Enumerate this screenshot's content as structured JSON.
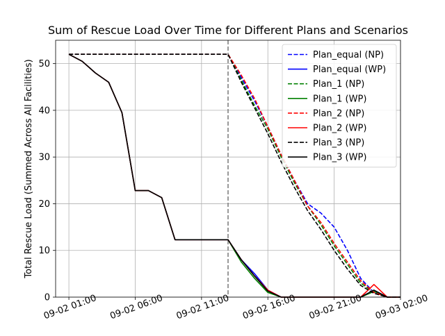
{
  "chart_data": {
    "type": "line",
    "title": "Sum of Rescue Load Over Time for Different Plans and Scenarios",
    "xlabel": "",
    "ylabel": "Total Rescue Load (Summed Across All Facilities)",
    "xlim": [
      "2024-09-02 00:00",
      "2024-09-03 02:00"
    ],
    "ylim": [
      0,
      55
    ],
    "x_ticks": [
      {
        "value": "2024-09-02 01:00",
        "label": "09-02 01:00"
      },
      {
        "value": "2024-09-02 06:00",
        "label": "09-02 06:00"
      },
      {
        "value": "2024-09-02 11:00",
        "label": "09-02 11:00"
      },
      {
        "value": "2024-09-02 16:00",
        "label": "09-02 16:00"
      },
      {
        "value": "2024-09-02 21:00",
        "label": "09-02 21:00"
      },
      {
        "value": "2024-09-03 02:00",
        "label": "09-03 02:00"
      }
    ],
    "y_ticks": [
      0,
      10,
      20,
      30,
      40,
      50
    ],
    "grid": true,
    "legend_position": "top-right",
    "vline": {
      "x": "2024-09-02 13:00",
      "color": "#808080",
      "style": "dashed"
    },
    "series": [
      {
        "name": "Plan_equal (NP)",
        "color": "#0000ff",
        "style": "dashed",
        "x": [
          "2024-09-02 01:00",
          "2024-09-02 13:00",
          "2024-09-02 14:00",
          "2024-09-02 15:00",
          "2024-09-02 16:00",
          "2024-09-02 17:00",
          "2024-09-02 18:00",
          "2024-09-02 19:00",
          "2024-09-02 20:00",
          "2024-09-02 21:00",
          "2024-09-02 22:00",
          "2024-09-02 23:00",
          "2024-09-03 00:00",
          "2024-09-03 01:00",
          "2024-09-03 02:00"
        ],
        "y": [
          52,
          52,
          47,
          42,
          36.5,
          30.5,
          25,
          20,
          18,
          15,
          10,
          4,
          1,
          0,
          0
        ]
      },
      {
        "name": "Plan_equal (WP)",
        "color": "#0000ff",
        "style": "solid",
        "x": [
          "2024-09-02 01:00",
          "2024-09-02 02:00",
          "2024-09-02 03:00",
          "2024-09-02 04:00",
          "2024-09-02 05:00",
          "2024-09-02 06:00",
          "2024-09-02 07:00",
          "2024-09-02 08:00",
          "2024-09-02 09:00",
          "2024-09-02 10:00",
          "2024-09-02 11:00",
          "2024-09-02 12:00",
          "2024-09-02 13:00",
          "2024-09-02 14:00",
          "2024-09-02 15:00",
          "2024-09-02 16:00",
          "2024-09-02 17:00",
          "2024-09-02 18:00",
          "2024-09-02 19:00",
          "2024-09-02 20:00",
          "2024-09-02 21:00",
          "2024-09-02 22:00",
          "2024-09-02 23:00",
          "2024-09-03 00:00",
          "2024-09-03 01:00",
          "2024-09-03 02:00"
        ],
        "y": [
          52,
          50.5,
          48,
          46,
          39.5,
          22.8,
          22.8,
          21.3,
          12.3,
          12.3,
          12.3,
          12.3,
          12.3,
          8,
          5,
          1.5,
          0,
          0,
          0,
          0,
          0,
          0,
          0,
          1.5,
          0,
          0
        ]
      },
      {
        "name": "Plan_1 (NP)",
        "color": "#008000",
        "style": "dashed",
        "x": [
          "2024-09-02 01:00",
          "2024-09-02 13:00",
          "2024-09-02 14:00",
          "2024-09-02 15:00",
          "2024-09-02 16:00",
          "2024-09-02 17:00",
          "2024-09-02 18:00",
          "2024-09-02 19:00",
          "2024-09-02 20:00",
          "2024-09-02 21:00",
          "2024-09-02 22:00",
          "2024-09-02 23:00",
          "2024-09-03 00:00",
          "2024-09-03 01:00",
          "2024-09-03 02:00"
        ],
        "y": [
          52,
          52,
          46.5,
          41,
          36,
          30,
          24.5,
          19.5,
          15.5,
          11,
          7,
          3,
          1,
          0,
          0
        ]
      },
      {
        "name": "Plan_1 (WP)",
        "color": "#008000",
        "style": "solid",
        "x": [
          "2024-09-02 01:00",
          "2024-09-02 02:00",
          "2024-09-02 03:00",
          "2024-09-02 04:00",
          "2024-09-02 05:00",
          "2024-09-02 06:00",
          "2024-09-02 07:00",
          "2024-09-02 08:00",
          "2024-09-02 09:00",
          "2024-09-02 10:00",
          "2024-09-02 11:00",
          "2024-09-02 12:00",
          "2024-09-02 13:00",
          "2024-09-02 14:00",
          "2024-09-02 15:00",
          "2024-09-02 16:00",
          "2024-09-02 17:00",
          "2024-09-02 18:00",
          "2024-09-02 19:00",
          "2024-09-02 20:00",
          "2024-09-02 21:00",
          "2024-09-02 22:00",
          "2024-09-02 23:00",
          "2024-09-03 00:00",
          "2024-09-03 01:00",
          "2024-09-03 02:00"
        ],
        "y": [
          52,
          50.5,
          48,
          46,
          39.5,
          22.8,
          22.8,
          21.3,
          12.3,
          12.3,
          12.3,
          12.3,
          12.3,
          7.5,
          4,
          1,
          0,
          0,
          0,
          0,
          0,
          0,
          0,
          1.2,
          0,
          0
        ]
      },
      {
        "name": "Plan_2 (NP)",
        "color": "#ff0000",
        "style": "dashed",
        "x": [
          "2024-09-02 01:00",
          "2024-09-02 13:00",
          "2024-09-02 14:00",
          "2024-09-02 15:00",
          "2024-09-02 16:00",
          "2024-09-02 17:00",
          "2024-09-02 18:00",
          "2024-09-02 19:00",
          "2024-09-02 20:00",
          "2024-09-02 21:00",
          "2024-09-02 22:00",
          "2024-09-02 23:00",
          "2024-09-03 00:00",
          "2024-09-03 01:00",
          "2024-09-03 02:00"
        ],
        "y": [
          52,
          52,
          47.5,
          42.5,
          36.5,
          30.5,
          25,
          19.5,
          16,
          11.5,
          7.5,
          3.5,
          1,
          0,
          0
        ]
      },
      {
        "name": "Plan_2 (WP)",
        "color": "#ff0000",
        "style": "solid",
        "x": [
          "2024-09-02 01:00",
          "2024-09-02 02:00",
          "2024-09-02 03:00",
          "2024-09-02 04:00",
          "2024-09-02 05:00",
          "2024-09-02 06:00",
          "2024-09-02 07:00",
          "2024-09-02 08:00",
          "2024-09-02 09:00",
          "2024-09-02 10:00",
          "2024-09-02 11:00",
          "2024-09-02 12:00",
          "2024-09-02 13:00",
          "2024-09-02 14:00",
          "2024-09-02 15:00",
          "2024-09-02 16:00",
          "2024-09-02 17:00",
          "2024-09-02 18:00",
          "2024-09-02 19:00",
          "2024-09-02 20:00",
          "2024-09-02 21:00",
          "2024-09-02 22:00",
          "2024-09-02 23:00",
          "2024-09-03 00:00",
          "2024-09-03 01:00",
          "2024-09-03 02:00"
        ],
        "y": [
          52,
          50.5,
          48,
          46,
          39.5,
          22.8,
          22.8,
          21.3,
          12.3,
          12.3,
          12.3,
          12.3,
          12.3,
          8,
          4.5,
          1.5,
          0,
          0,
          0,
          0,
          0,
          0,
          0,
          2.7,
          0,
          0
        ]
      },
      {
        "name": "Plan_3 (NP)",
        "color": "#000000",
        "style": "dashed",
        "x": [
          "2024-09-02 01:00",
          "2024-09-02 13:00",
          "2024-09-02 14:00",
          "2024-09-02 15:00",
          "2024-09-02 16:00",
          "2024-09-02 17:00",
          "2024-09-02 18:00",
          "2024-09-02 19:00",
          "2024-09-02 20:00",
          "2024-09-02 21:00",
          "2024-09-02 22:00",
          "2024-09-02 23:00",
          "2024-09-03 00:00",
          "2024-09-03 01:00",
          "2024-09-03 02:00"
        ],
        "y": [
          52,
          52,
          46,
          40.5,
          35,
          29,
          23.5,
          18.5,
          14.5,
          10,
          6,
          2.5,
          0.8,
          0,
          0
        ]
      },
      {
        "name": "Plan_3 (WP)",
        "color": "#000000",
        "style": "solid",
        "x": [
          "2024-09-02 01:00",
          "2024-09-02 02:00",
          "2024-09-02 03:00",
          "2024-09-02 04:00",
          "2024-09-02 05:00",
          "2024-09-02 06:00",
          "2024-09-02 07:00",
          "2024-09-02 08:00",
          "2024-09-02 09:00",
          "2024-09-02 10:00",
          "2024-09-02 11:00",
          "2024-09-02 12:00",
          "2024-09-02 13:00",
          "2024-09-02 14:00",
          "2024-09-02 15:00",
          "2024-09-02 16:00",
          "2024-09-02 17:00",
          "2024-09-02 18:00",
          "2024-09-02 19:00",
          "2024-09-02 20:00",
          "2024-09-02 21:00",
          "2024-09-02 22:00",
          "2024-09-02 23:00",
          "2024-09-03 00:00",
          "2024-09-03 01:00",
          "2024-09-03 02:00"
        ],
        "y": [
          52,
          50.5,
          48,
          46,
          39.5,
          22.8,
          22.8,
          21.3,
          12.3,
          12.3,
          12.3,
          12.3,
          12.3,
          8,
          4.5,
          1.3,
          0,
          0,
          0,
          0,
          0,
          0,
          0,
          1.5,
          0,
          0
        ]
      }
    ]
  }
}
